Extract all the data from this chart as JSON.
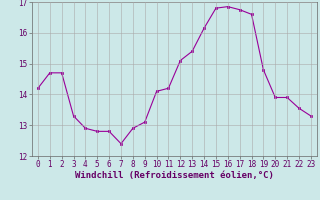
{
  "x": [
    0,
    1,
    2,
    3,
    4,
    5,
    6,
    7,
    8,
    9,
    10,
    11,
    12,
    13,
    14,
    15,
    16,
    17,
    18,
    19,
    20,
    21,
    22,
    23
  ],
  "y": [
    14.2,
    14.7,
    14.7,
    13.3,
    12.9,
    12.8,
    12.8,
    12.4,
    12.9,
    13.1,
    14.1,
    14.2,
    15.1,
    15.4,
    16.15,
    16.8,
    16.85,
    16.75,
    16.6,
    14.8,
    13.9,
    13.9,
    13.55,
    13.3
  ],
  "line_color": "#990099",
  "marker_color": "#990099",
  "bg_color": "#cce8e8",
  "grid_color": "#aaaaaa",
  "xlabel": "Windchill (Refroidissement éolien,°C)",
  "ylabel": "",
  "ylim": [
    12,
    17
  ],
  "xlim": [
    -0.5,
    23.5
  ],
  "yticks": [
    12,
    13,
    14,
    15,
    16,
    17
  ],
  "xticks": [
    0,
    1,
    2,
    3,
    4,
    5,
    6,
    7,
    8,
    9,
    10,
    11,
    12,
    13,
    14,
    15,
    16,
    17,
    18,
    19,
    20,
    21,
    22,
    23
  ],
  "tick_color": "#660066",
  "label_color": "#660066",
  "label_fontsize": 6.5,
  "tick_fontsize": 5.5
}
